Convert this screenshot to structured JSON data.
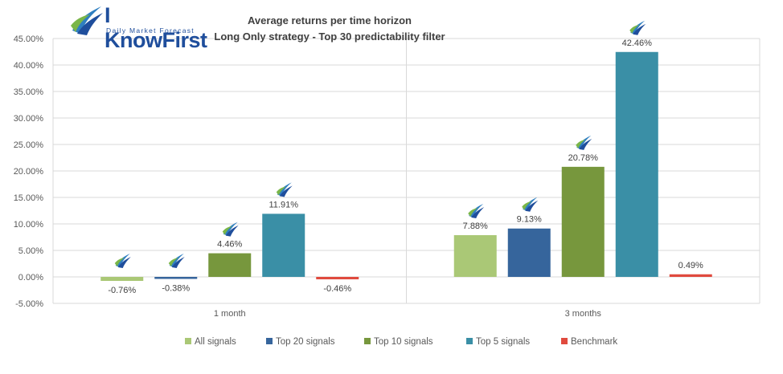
{
  "branding": {
    "logo_text": "I KnowFirst",
    "logo_subtitle": "Daily Market Forecast"
  },
  "chart_data": {
    "type": "bar",
    "title": "Average returns per time horizon",
    "subtitle": "Long Only strategy - Top 30 predictability filter",
    "categories": [
      "1 month",
      "3 months"
    ],
    "series": [
      {
        "name": "All signals",
        "color": "#aac876",
        "values": [
          -0.76,
          7.88
        ],
        "labels": [
          "-0.76%",
          "7.88%"
        ]
      },
      {
        "name": "Top 20 signals",
        "color": "#36659c",
        "values": [
          -0.38,
          9.13
        ],
        "labels": [
          "-0.38%",
          "9.13%"
        ]
      },
      {
        "name": "Top 10 signals",
        "color": "#77973d",
        "values": [
          4.46,
          20.78
        ],
        "labels": [
          "4.46%",
          "20.78%"
        ]
      },
      {
        "name": "Top 5 signals",
        "color": "#3a8fa6",
        "values": [
          11.91,
          42.46
        ],
        "labels": [
          "11.91%",
          "42.46%"
        ]
      },
      {
        "name": "Benchmark",
        "color": "#e04a3e",
        "values": [
          -0.46,
          0.49
        ],
        "labels": [
          "-0.46%",
          "0.49%"
        ]
      }
    ],
    "ylim": [
      -5,
      45
    ],
    "yticks": [
      -5,
      0,
      5,
      10,
      15,
      20,
      25,
      30,
      35,
      40,
      45
    ],
    "ytick_labels": [
      "-5.00%",
      "0.00%",
      "5.00%",
      "10.00%",
      "15.00%",
      "20.00%",
      "25.00%",
      "30.00%",
      "35.00%",
      "40.00%",
      "45.00%"
    ],
    "grid": true,
    "legend": "bottom",
    "icon": "logo-swoosh-icon"
  }
}
